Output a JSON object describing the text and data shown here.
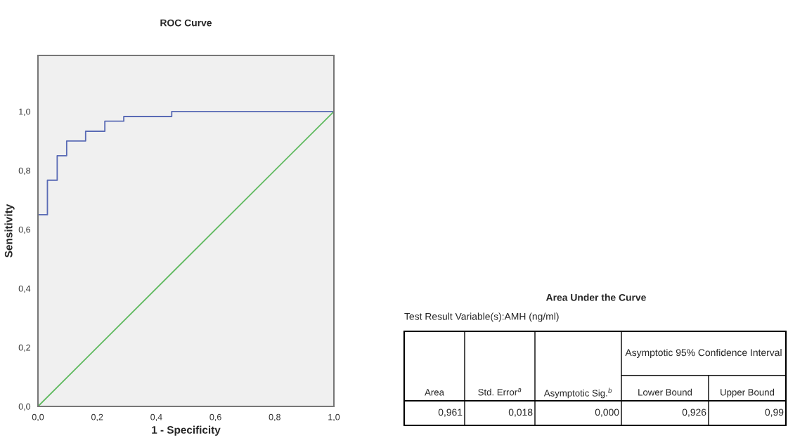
{
  "chart_data": [
    {
      "type": "step",
      "title": "ROC Curve",
      "xlabel": "1 - Specificity",
      "ylabel": "Sensitivity",
      "series": [
        {
          "type": "step",
          "color": "#5a6bb5",
          "x": [
            0,
            0,
            0.032,
            0.065,
            0.097,
            0.161,
            0.226,
            0.29,
            0.452,
            1
          ],
          "values": [
            0,
            0.65,
            0.767,
            0.85,
            0.9,
            0.933,
            0.967,
            0.983,
            1,
            1
          ]
        },
        {
          "type": "line",
          "color": "#63bb63",
          "x": [
            0,
            1
          ],
          "values": [
            0,
            1
          ]
        }
      ],
      "xlim": [
        0,
        1
      ],
      "ylim": [
        0,
        1.19
      ],
      "xticks": [
        {
          "value": 0,
          "label": "0,0"
        },
        {
          "value": 0.2,
          "label": "0,2"
        },
        {
          "value": 0.4,
          "label": "0,4"
        },
        {
          "value": 0.6,
          "label": "0,6"
        },
        {
          "value": 0.8,
          "label": "0,8"
        },
        {
          "value": 1,
          "label": "1,0"
        }
      ],
      "yticks": [
        {
          "value": 0,
          "label": "0,0"
        },
        {
          "value": 0.2,
          "label": "0,2"
        },
        {
          "value": 0.4,
          "label": "0,4"
        },
        {
          "value": 0.6,
          "label": "0,6"
        },
        {
          "value": 0.8,
          "label": "0,8"
        },
        {
          "value": 1,
          "label": "1,0"
        }
      ],
      "grid": false,
      "legend": false
    },
    {
      "type": "other",
      "title": "Area Under the Curve",
      "subtitle": "Test Result Variable(s):AMH (ng/ml)",
      "annotations": [
        "Asymptotic 95% Confidence Interval",
        "Area",
        "Std. Error$^{a}$",
        "Asymptotic Sig.$^{b}$",
        "Lower Bound",
        "Upper Bound",
        "0,961",
        "0,018",
        "0,000",
        "0,926",
        "0,99"
      ]
    }
  ]
}
